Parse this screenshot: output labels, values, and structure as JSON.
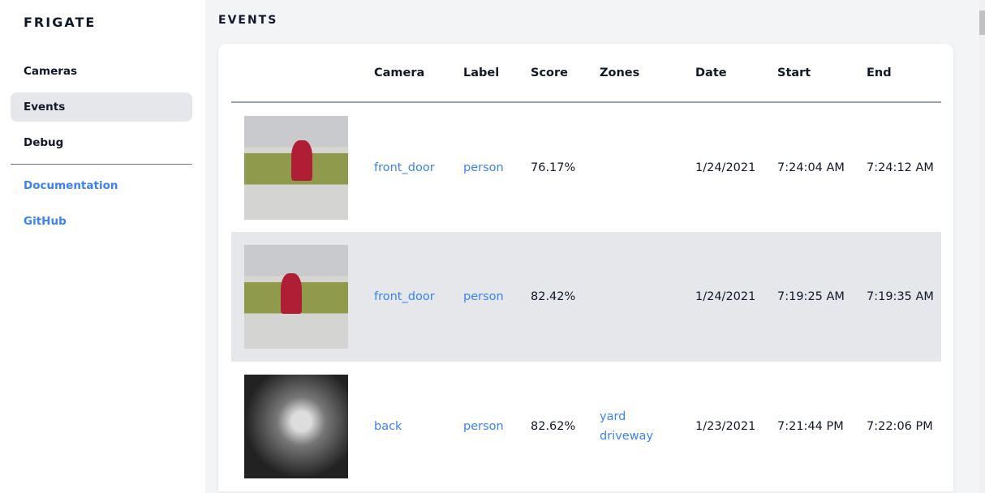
{
  "sidebar": {
    "brand": "FRIGATE",
    "items": [
      {
        "label": "Cameras"
      },
      {
        "label": "Events",
        "active": true
      },
      {
        "label": "Debug"
      }
    ],
    "links": [
      {
        "label": "Documentation"
      },
      {
        "label": "GitHub"
      }
    ]
  },
  "page": {
    "title": "EVENTS"
  },
  "table": {
    "columns": [
      "",
      "Camera",
      "Label",
      "Score",
      "Zones",
      "Date",
      "Start",
      "End"
    ],
    "rows": [
      {
        "camera": "front_door",
        "label": "person",
        "score": "76.17%",
        "zones": [
          "",
          ""
        ],
        "date": "1/24/2021",
        "start": "7:24:04 AM",
        "end": "7:24:12 AM"
      },
      {
        "camera": "front_door",
        "label": "person",
        "score": "82.42%",
        "zones": [
          "",
          ""
        ],
        "date": "1/24/2021",
        "start": "7:19:25 AM",
        "end": "7:19:35 AM"
      },
      {
        "camera": "back",
        "label": "person",
        "score": "82.62%",
        "zones": [
          "yard",
          "driveway"
        ],
        "date": "1/23/2021",
        "start": "7:21:44 PM",
        "end": "7:22:06 PM"
      }
    ]
  },
  "colors": {
    "accent": "#3b82f6",
    "active_bg": "#e5e7eb",
    "page_bg": "#f3f4f6"
  }
}
